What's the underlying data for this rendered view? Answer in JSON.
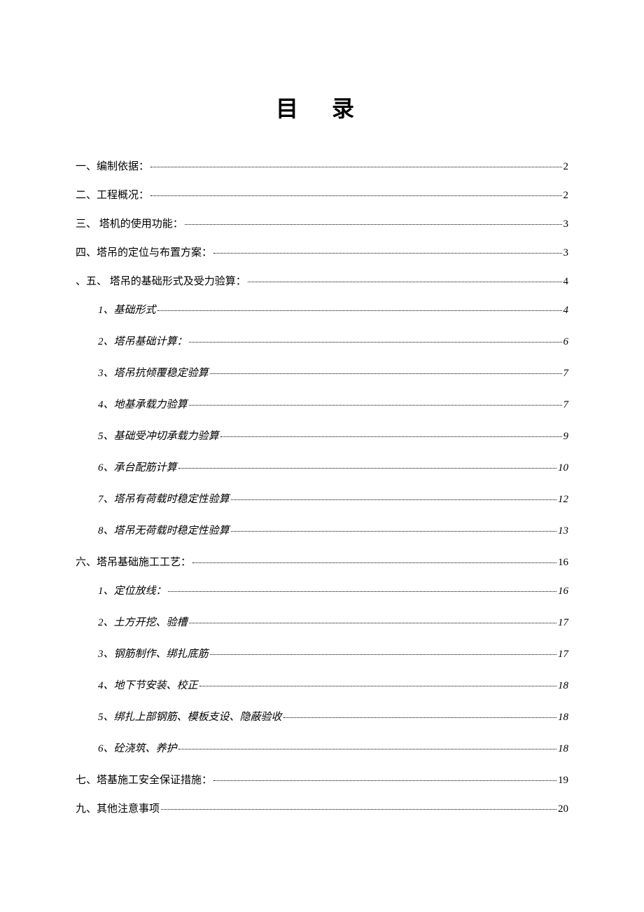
{
  "title": "目  录",
  "entries": [
    {
      "level": 1,
      "label": "一、编制依据：",
      "page": "2"
    },
    {
      "level": 1,
      "label": "二、工程概况：",
      "page": "2"
    },
    {
      "level": 1,
      "label": "三、   塔机的使用功能：",
      "page": "3"
    },
    {
      "level": 1,
      "label": "四、塔吊的定位与布置方案：",
      "page": "3"
    },
    {
      "level": 1,
      "label": "、五、  塔吊的基础形式及受力验算：",
      "page": "4"
    },
    {
      "level": 2,
      "label": "1、基础形式",
      "page": "4"
    },
    {
      "level": 2,
      "label": "2、塔吊基础计算：",
      "page": "6"
    },
    {
      "level": 2,
      "label": "3、塔吊抗倾覆稳定验算",
      "page": "7"
    },
    {
      "level": 2,
      "label": "4、地基承载力验算",
      "page": "7"
    },
    {
      "level": 2,
      "label": "5、基础受冲切承载力验算",
      "page": "9"
    },
    {
      "level": 2,
      "label": "6、承台配筋计算",
      "page": "10"
    },
    {
      "level": 2,
      "label": "7、塔吊有荷载时稳定性验算",
      "page": "12"
    },
    {
      "level": 2,
      "label": "8、塔吊无荷载时稳定性验算",
      "page": "13"
    },
    {
      "level": 1,
      "label": "六、塔吊基础施工工艺：",
      "page": "16"
    },
    {
      "level": 2,
      "label": "1、定位放线：",
      "page": "16"
    },
    {
      "level": 2,
      "label": "2、土方开挖、验槽",
      "page": "17"
    },
    {
      "level": 2,
      "label": "3、钢筋制作、绑扎底筋",
      "page": "17"
    },
    {
      "level": 2,
      "label": "4、地下节安装、校正",
      "page": "18"
    },
    {
      "level": 2,
      "label": "5、绑扎上部钢筋、模板支设、隐蔽验收",
      "page": "18"
    },
    {
      "level": 2,
      "label": "6、砼浇筑、养护",
      "page": "18"
    },
    {
      "level": 1,
      "label": "七、塔基施工安全保证措施：",
      "page": "19"
    },
    {
      "level": 1,
      "label": "九、其他注意事项",
      "page": "20"
    }
  ]
}
